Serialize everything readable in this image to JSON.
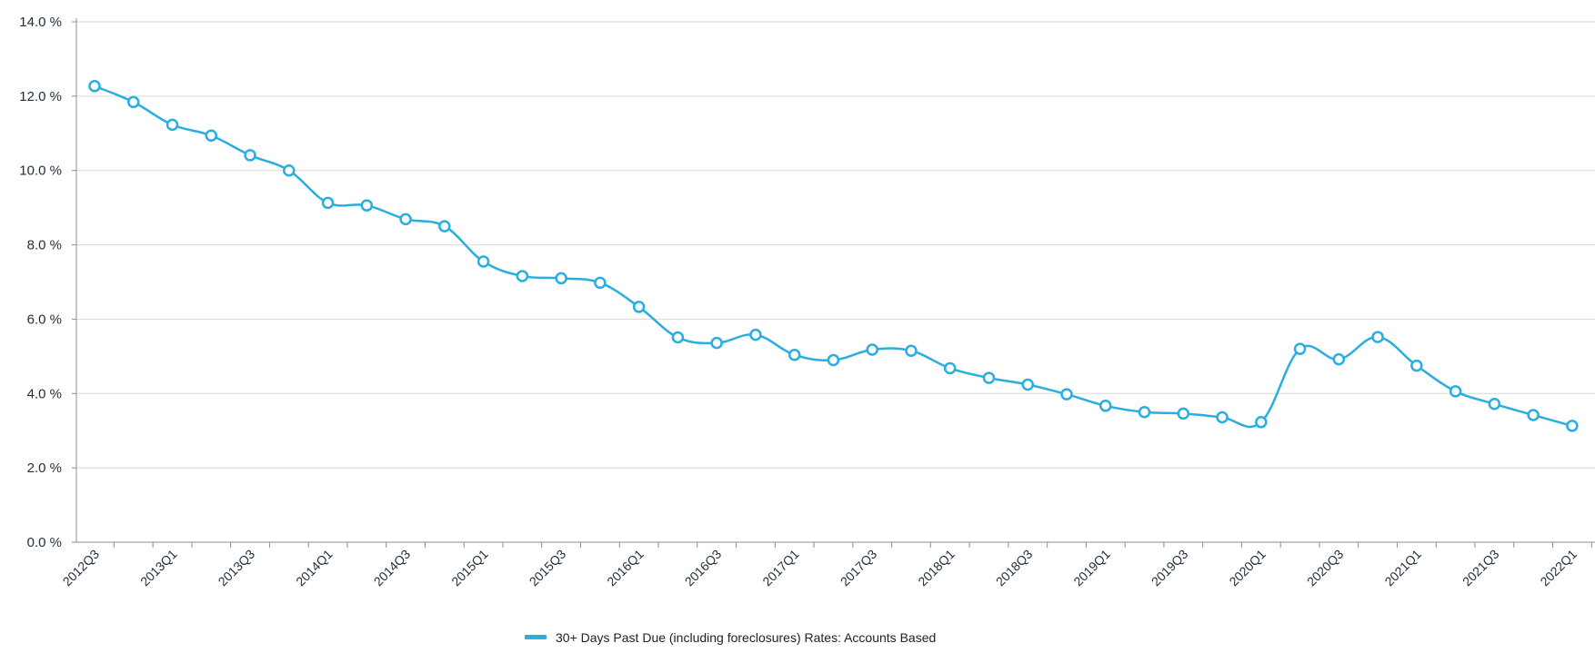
{
  "chart_data": {
    "type": "line",
    "y_tick_labels": [
      "0.0 %",
      "2.0 %",
      "4.0 %",
      "6.0 %",
      "8.0 %",
      "10.0 %",
      "12.0 %",
      "14.0 %"
    ],
    "ylim": [
      0,
      14
    ],
    "grid": true,
    "legend_position": "bottom-center",
    "series_color": "#29aee0",
    "x_tick_labels": [
      "2012Q3",
      "2013Q1",
      "2013Q3",
      "2014Q1",
      "2014Q3",
      "2015Q1",
      "2015Q3",
      "2016Q1",
      "2016Q3",
      "2017Q1",
      "2017Q3",
      "2018Q1",
      "2018Q3",
      "2019Q1",
      "2019Q3",
      "2020Q1",
      "2020Q3",
      "2021Q1",
      "2021Q3",
      "2022Q1"
    ],
    "categories": [
      "2012Q3",
      "2012Q4",
      "2013Q1",
      "2013Q2",
      "2013Q3",
      "2013Q4",
      "2014Q1",
      "2014Q2",
      "2014Q3",
      "2014Q4",
      "2015Q1",
      "2015Q2",
      "2015Q3",
      "2015Q4",
      "2016Q1",
      "2016Q2",
      "2016Q3",
      "2016Q4",
      "2017Q1",
      "2017Q2",
      "2017Q3",
      "2017Q4",
      "2018Q1",
      "2018Q2",
      "2018Q3",
      "2018Q4",
      "2019Q1",
      "2019Q2",
      "2019Q3",
      "2019Q4",
      "2020Q1",
      "2020Q2",
      "2020Q3",
      "2020Q4",
      "2021Q1",
      "2021Q2",
      "2021Q3",
      "2021Q4",
      "2022Q1"
    ],
    "series": [
      {
        "name": "30+ Days Past Due (including foreclosures) Rates: Accounts Based",
        "values": [
          12.27,
          11.84,
          11.23,
          10.94,
          10.41,
          10.0,
          9.13,
          9.06,
          8.69,
          8.5,
          7.55,
          7.16,
          7.1,
          6.98,
          6.33,
          5.51,
          5.36,
          5.58,
          5.04,
          4.9,
          5.18,
          5.15,
          4.68,
          4.42,
          4.24,
          3.98,
          3.67,
          3.5,
          3.46,
          3.36,
          3.23,
          5.2,
          4.92,
          5.52,
          4.75,
          4.06,
          3.72,
          3.42,
          3.13
        ]
      }
    ]
  }
}
